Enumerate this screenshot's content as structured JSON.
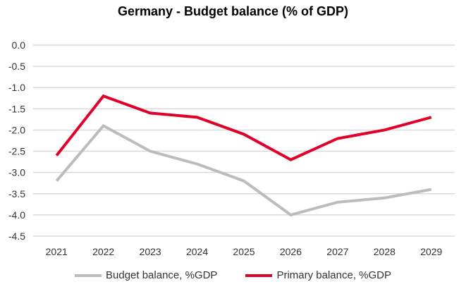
{
  "chart_data": {
    "type": "line",
    "title": "Germany  - Budget balance (% of GDP)",
    "xlabel": "",
    "ylabel": "",
    "categories": [
      "2021",
      "2022",
      "2023",
      "2024",
      "2025",
      "2026",
      "2027",
      "2028",
      "2029"
    ],
    "ylim": [
      -4.5,
      0.0
    ],
    "yticks": [
      "0.0",
      "-0.5",
      "-1.0",
      "-1.5",
      "-2.0",
      "-2.5",
      "-3.0",
      "-3.5",
      "-4.0",
      "-4.5"
    ],
    "grid": true,
    "legend_position": "bottom",
    "series": [
      {
        "name": "Budget balance, %GDP",
        "color": "#bfbbbb",
        "values": [
          -3.2,
          -1.9,
          -2.5,
          -2.8,
          -3.2,
          -4.0,
          -3.7,
          -3.6,
          -3.4
        ]
      },
      {
        "name": "Primary balance, %GDP",
        "color": "#e1002a",
        "values": [
          -2.6,
          -1.2,
          -1.6,
          -1.7,
          -2.1,
          -2.7,
          -2.2,
          -2.0,
          -1.7
        ]
      }
    ]
  }
}
